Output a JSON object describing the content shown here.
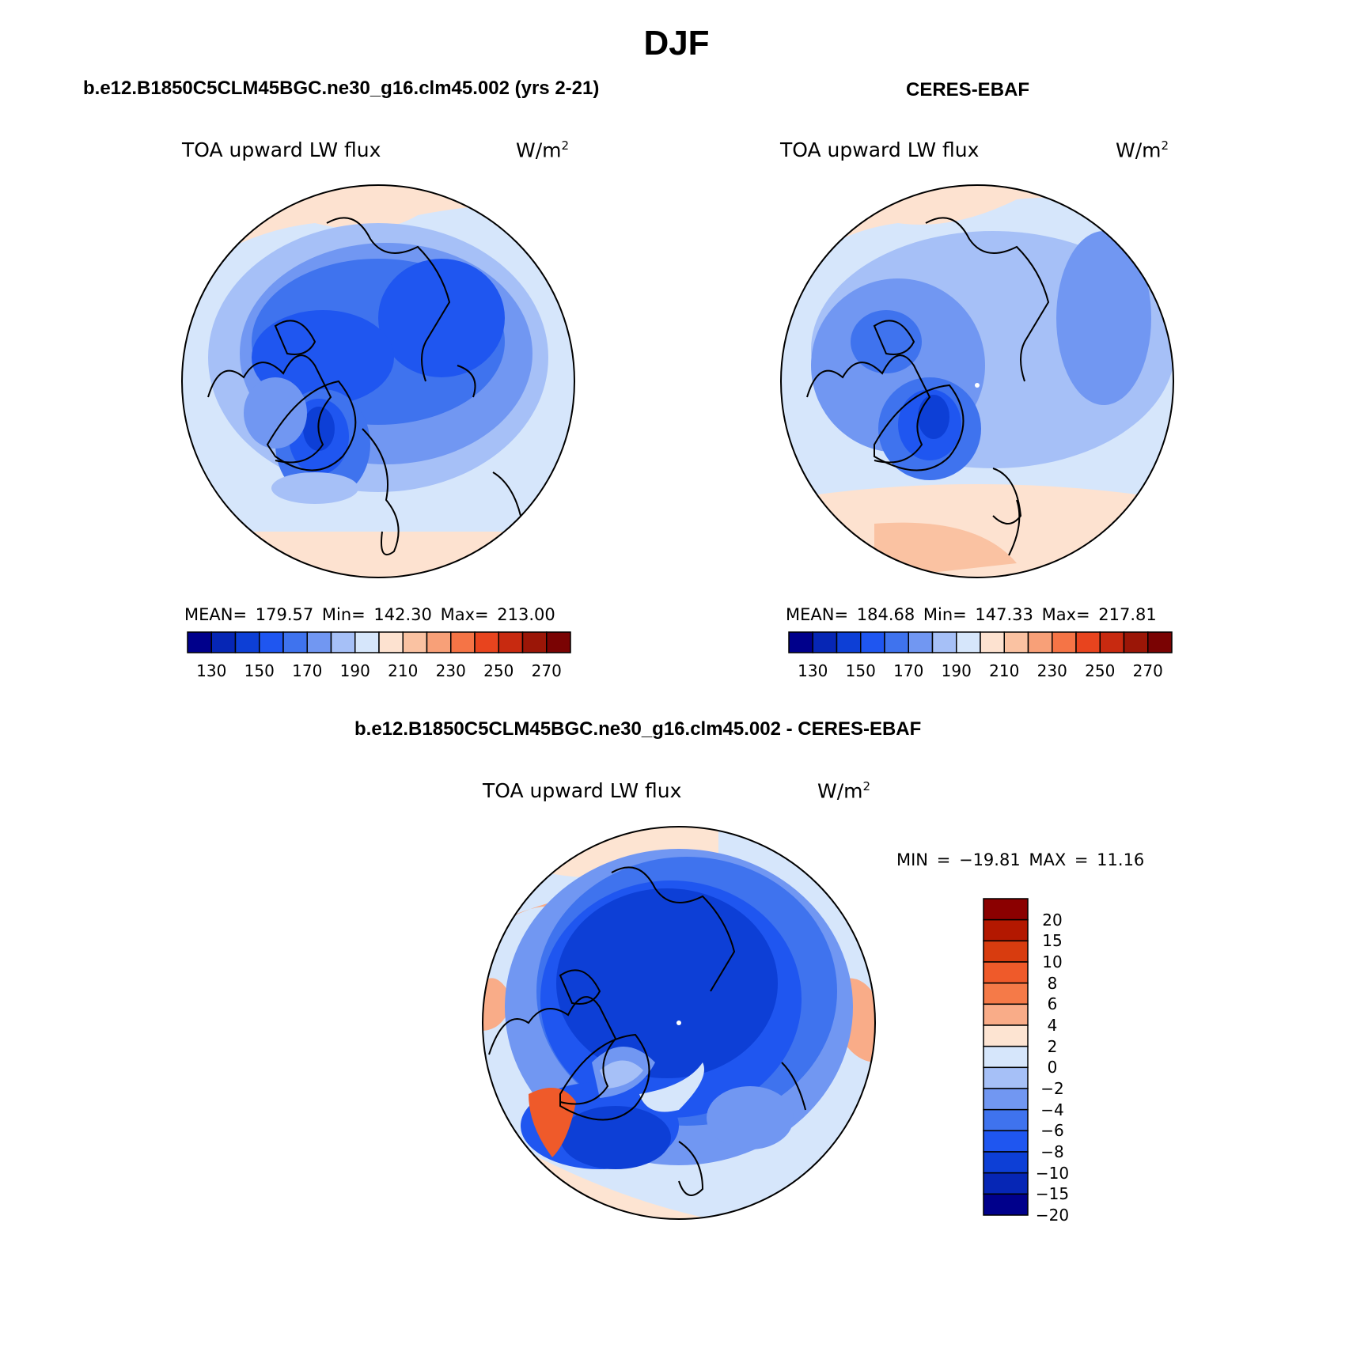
{
  "figure": {
    "season": "DJF"
  },
  "panels": [
    {
      "id": "model",
      "title": "b.e12.B1850C5CLM45BGC.ne30_g16.clm45.002 (yrs 2-21)",
      "variable": "TOA upward LW flux",
      "units_base": "W/m",
      "units_exp": "2",
      "stats": "MEAN= 179.57   Min= 142.30   Max= 213.00",
      "colorbar_labels": [
        "130",
        "150",
        "170",
        "190",
        "210",
        "230",
        "250",
        "270"
      ]
    },
    {
      "id": "obs",
      "title": "CERES-EBAF",
      "variable": "TOA upward LW flux",
      "units_base": "W/m",
      "units_exp": "2",
      "stats": "MEAN= 184.68   Min= 147.33   Max= 217.81",
      "colorbar_labels": [
        "130",
        "150",
        "170",
        "190",
        "210",
        "230",
        "250",
        "270"
      ]
    },
    {
      "id": "diff",
      "title": "b.e12.B1850C5CLM45BGC.ne30_g16.clm45.002 - CERES-EBAF",
      "variable": "TOA upward LW flux",
      "units_base": "W/m",
      "units_exp": "2",
      "stats": "MIN = −19.81 MAX =   11.16",
      "colorbar_labels": [
        "20",
        "15",
        "10",
        "8",
        "6",
        "4",
        "2",
        "0",
        "−2",
        "−4",
        "−6",
        "−8",
        "−10",
        "−15",
        "−20"
      ]
    }
  ],
  "colors": {
    "abs_scale": [
      "#00008b",
      "#0626b5",
      "#0d3fd6",
      "#1f56f0",
      "#3f73ee",
      "#7197f2",
      "#a6c0f7",
      "#d6e6fb",
      "#fde2d0",
      "#fac2a2",
      "#f8a078",
      "#f57446",
      "#e8441e",
      "#c82a10",
      "#9b1607",
      "#7a0303"
    ],
    "diff_scale": [
      "#8b0000",
      "#b31800",
      "#d83c0f",
      "#ef5a2a",
      "#f57a48",
      "#f9ac88",
      "#fde4d2",
      "#d6e6fb",
      "#a6c0f7",
      "#7197f2",
      "#3f73ee",
      "#1f56f0",
      "#0d3fd6",
      "#0626b5",
      "#00008b"
    ]
  }
}
